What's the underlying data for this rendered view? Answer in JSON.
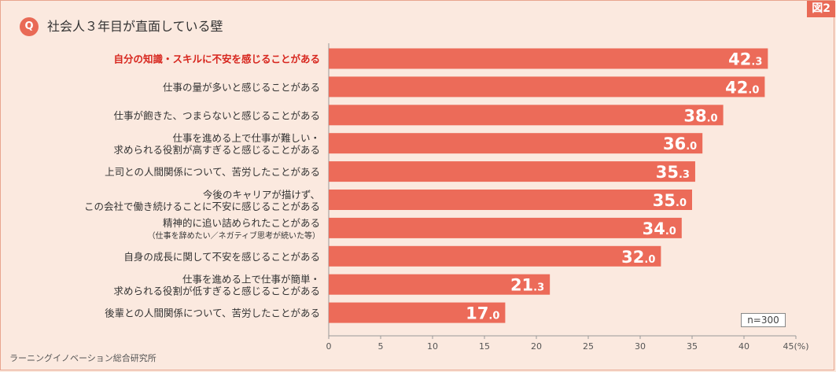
{
  "figure_tag": "図2",
  "question_badge": "Q",
  "title": "社会人３年目が直面している壁",
  "source": "ラーニングイノベーション総合研究所",
  "sample_size": "n=300",
  "colors": {
    "bar": "#ec6b59",
    "highlight_label": "#d7261e",
    "label": "#333333",
    "background": "#fbe9df"
  },
  "chart_data": {
    "type": "bar",
    "orientation": "horizontal",
    "title": "社会人３年目が直面している壁",
    "xlabel": "",
    "ylabel": "",
    "x_unit": "(%)",
    "xlim": [
      0,
      45
    ],
    "x_ticks": [
      0,
      5,
      10,
      15,
      20,
      25,
      30,
      35,
      40,
      45
    ],
    "grid": false,
    "categories": [
      {
        "lines": [
          "自分の知識・スキルに不安を感じることがある"
        ],
        "highlight": true
      },
      {
        "lines": [
          "仕事の量が多いと感じることがある"
        ]
      },
      {
        "lines": [
          "仕事が飽きた、つまらないと感じることがある"
        ]
      },
      {
        "lines": [
          "仕事を進める上で仕事が難しい・",
          "求められる役割が高すぎると感じることがある"
        ]
      },
      {
        "lines": [
          "上司との人間関係について、苦労したことがある"
        ]
      },
      {
        "lines": [
          "今後のキャリアが描けず、",
          "この会社で働き続けることに不安に感じることがある"
        ]
      },
      {
        "lines": [
          "精神的に追い詰められたことがある",
          "（仕事を辞めたい／ネガティブ思考が続いた等）"
        ]
      },
      {
        "lines": [
          "自身の成長に関して不安を感じることがある"
        ]
      },
      {
        "lines": [
          "仕事を進める上で仕事が簡単・",
          "求められる役割が低すぎると感じることがある"
        ]
      },
      {
        "lines": [
          "後輩との人間関係について、苦労したことがある"
        ]
      }
    ],
    "values": [
      42.3,
      42.0,
      38.0,
      36.0,
      35.3,
      35.0,
      34.0,
      32.0,
      21.3,
      17.0
    ]
  }
}
